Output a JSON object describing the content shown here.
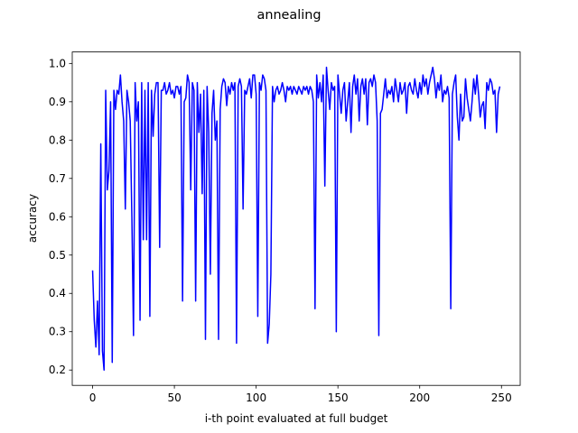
{
  "chart_data": {
    "type": "line",
    "title": "annealing",
    "x_label": "i-th point evaluated at full budget",
    "y_label": "accuracy",
    "color": "#0000ff",
    "xlim": [
      -12.45,
      261.45
    ],
    "ylim": [
      0.16,
      1.03
    ],
    "xticks": [
      0,
      50,
      100,
      150,
      200,
      250
    ],
    "yticks": [
      0.2,
      0.3,
      0.4,
      0.5,
      0.6,
      0.7,
      0.8,
      0.9,
      {
        "value": 1,
        "label": "1.0"
      }
    ],
    "x": [
      0,
      1,
      2,
      3,
      4,
      5,
      6,
      7,
      8,
      9,
      10,
      11,
      12,
      13,
      14,
      15,
      16,
      17,
      18,
      19,
      20,
      21,
      22,
      23,
      24,
      25,
      26,
      27,
      28,
      29,
      30,
      31,
      32,
      33,
      34,
      35,
      36,
      37,
      38,
      39,
      40,
      41,
      42,
      43,
      44,
      45,
      46,
      47,
      48,
      49,
      50,
      51,
      52,
      53,
      54,
      55,
      56,
      57,
      58,
      59,
      60,
      61,
      62,
      63,
      64,
      65,
      66,
      67,
      68,
      69,
      70,
      71,
      72,
      73,
      74,
      75,
      76,
      77,
      78,
      79,
      80,
      81,
      82,
      83,
      84,
      85,
      86,
      87,
      88,
      89,
      90,
      91,
      92,
      93,
      94,
      95,
      96,
      97,
      98,
      99,
      100,
      101,
      102,
      103,
      104,
      105,
      106,
      107,
      108,
      109,
      110,
      111,
      112,
      113,
      114,
      115,
      116,
      117,
      118,
      119,
      120,
      121,
      122,
      123,
      124,
      125,
      126,
      127,
      128,
      129,
      130,
      131,
      132,
      133,
      134,
      135,
      136,
      137,
      138,
      139,
      140,
      141,
      142,
      143,
      144,
      145,
      146,
      147,
      148,
      149,
      150,
      151,
      152,
      153,
      154,
      155,
      156,
      157,
      158,
      159,
      160,
      161,
      162,
      163,
      164,
      165,
      166,
      167,
      168,
      169,
      170,
      171,
      172,
      173,
      174,
      175,
      176,
      177,
      178,
      179,
      180,
      181,
      182,
      183,
      184,
      185,
      186,
      187,
      188,
      189,
      190,
      191,
      192,
      193,
      194,
      195,
      196,
      197,
      198,
      199,
      200,
      201,
      202,
      203,
      204,
      205,
      206,
      207,
      208,
      209,
      210,
      211,
      212,
      213,
      214,
      215,
      216,
      217,
      218,
      219,
      220,
      221,
      222,
      223,
      224,
      225,
      226,
      227,
      228,
      229,
      230,
      231,
      232,
      233,
      234,
      235,
      236,
      237,
      238,
      239,
      240,
      241,
      242,
      243,
      244,
      245,
      246,
      247,
      248,
      249
    ],
    "values": [
      0.46,
      0.33,
      0.26,
      0.38,
      0.24,
      0.79,
      0.25,
      0.2,
      0.93,
      0.67,
      0.72,
      0.9,
      0.22,
      0.93,
      0.88,
      0.93,
      0.92,
      0.97,
      0.9,
      0.85,
      0.62,
      0.93,
      0.9,
      0.85,
      0.6,
      0.29,
      0.95,
      0.85,
      0.9,
      0.33,
      0.95,
      0.54,
      0.93,
      0.54,
      0.95,
      0.34,
      0.93,
      0.81,
      0.92,
      0.95,
      0.95,
      0.52,
      0.93,
      0.93,
      0.95,
      0.92,
      0.93,
      0.95,
      0.92,
      0.93,
      0.91,
      0.94,
      0.94,
      0.92,
      0.94,
      0.38,
      0.9,
      0.91,
      0.97,
      0.95,
      0.67,
      0.95,
      0.93,
      0.38,
      0.95,
      0.82,
      0.92,
      0.66,
      0.93,
      0.28,
      0.94,
      0.82,
      0.45,
      0.87,
      0.93,
      0.8,
      0.85,
      0.28,
      0.88,
      0.94,
      0.96,
      0.95,
      0.89,
      0.94,
      0.92,
      0.95,
      0.93,
      0.95,
      0.27,
      0.94,
      0.96,
      0.94,
      0.62,
      0.93,
      0.92,
      0.94,
      0.96,
      0.91,
      0.97,
      0.97,
      0.92,
      0.34,
      0.95,
      0.93,
      0.97,
      0.96,
      0.93,
      0.27,
      0.32,
      0.45,
      0.94,
      0.9,
      0.93,
      0.94,
      0.92,
      0.93,
      0.95,
      0.93,
      0.9,
      0.94,
      0.93,
      0.94,
      0.92,
      0.94,
      0.93,
      0.92,
      0.94,
      0.93,
      0.92,
      0.94,
      0.93,
      0.94,
      0.92,
      0.94,
      0.93,
      0.9,
      0.36,
      0.97,
      0.91,
      0.95,
      0.9,
      0.97,
      0.68,
      0.99,
      0.93,
      0.88,
      0.95,
      0.93,
      0.94,
      0.3,
      0.97,
      0.92,
      0.87,
      0.93,
      0.95,
      0.85,
      0.9,
      0.95,
      0.82,
      0.94,
      0.97,
      0.92,
      0.96,
      0.85,
      0.94,
      0.96,
      0.92,
      0.96,
      0.84,
      0.95,
      0.96,
      0.94,
      0.97,
      0.95,
      0.85,
      0.29,
      0.87,
      0.88,
      0.92,
      0.96,
      0.91,
      0.93,
      0.92,
      0.94,
      0.9,
      0.96,
      0.93,
      0.9,
      0.95,
      0.92,
      0.93,
      0.95,
      0.87,
      0.94,
      0.95,
      0.93,
      0.92,
      0.96,
      0.93,
      0.91,
      0.95,
      0.92,
      0.97,
      0.94,
      0.96,
      0.92,
      0.95,
      0.97,
      0.99,
      0.96,
      0.91,
      0.95,
      0.93,
      0.97,
      0.9,
      0.93,
      0.92,
      0.94,
      0.91,
      0.36,
      0.92,
      0.95,
      0.97,
      0.86,
      0.8,
      0.92,
      0.85,
      0.86,
      0.96,
      0.91,
      0.88,
      0.85,
      0.9,
      0.96,
      0.92,
      0.97,
      0.92,
      0.86,
      0.89,
      0.9,
      0.83,
      0.95,
      0.93,
      0.96,
      0.95,
      0.92,
      0.93,
      0.82,
      0.92,
      0.94
    ]
  }
}
